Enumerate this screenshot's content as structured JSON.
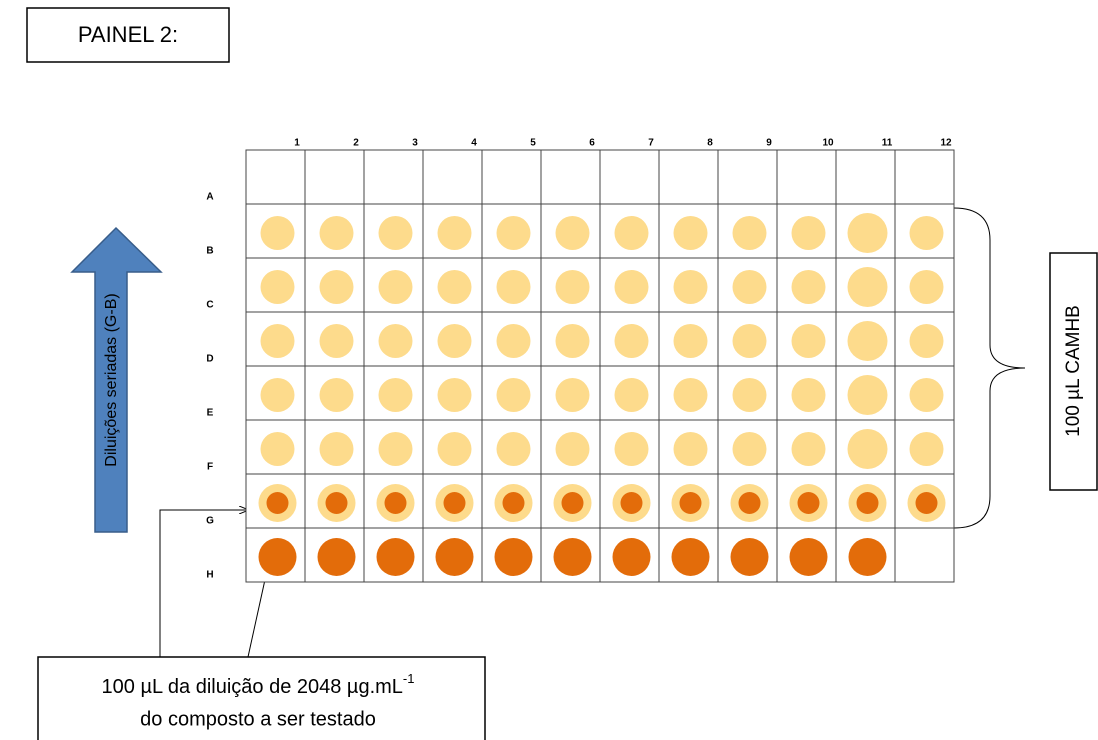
{
  "title": "PAINEL 2:",
  "plate": {
    "columns": [
      "1",
      "2",
      "3",
      "4",
      "5",
      "6",
      "7",
      "8",
      "9",
      "10",
      "11",
      "12"
    ],
    "rows": [
      "A",
      "B",
      "C",
      "D",
      "E",
      "F",
      "G",
      "H"
    ]
  },
  "arrow_label": "Diluições seriadas (G-B)",
  "bracket_label": "100 µL CAMHB",
  "note": {
    "line1": "100 µL da diluição de 2048 µg.mL",
    "superscript": "-1",
    "line2": "do composto a ser testado"
  }
}
